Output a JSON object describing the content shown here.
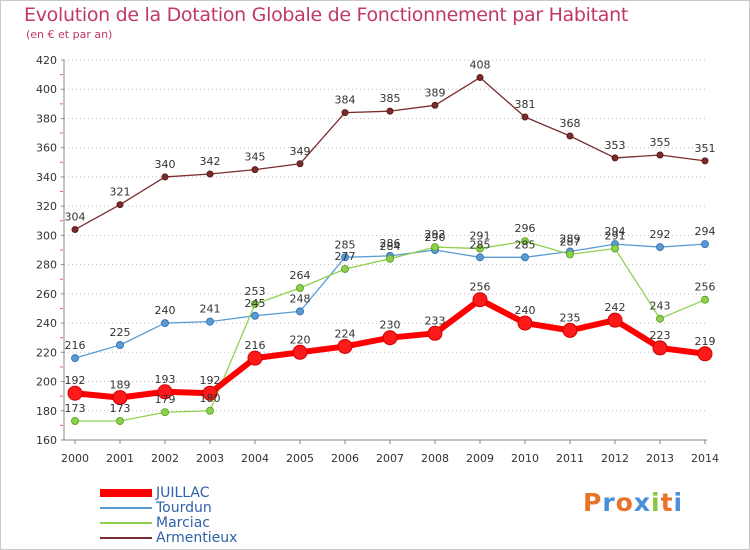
{
  "title": "Evolution de la Dotation Globale de Fonctionnement par Habitant",
  "subtitle": "(en € et par an)",
  "logo": {
    "text": "Proxiti",
    "colors": [
      "#e8732a",
      "#4a90d9",
      "#e8732a",
      "#4a90d9",
      "#8cc63f",
      "#e8732a",
      "#4a90d9"
    ]
  },
  "chart_data": {
    "type": "line",
    "title": "Evolution de la Dotation Globale de Fonctionnement par Habitant",
    "subtitle": "(en € et par an)",
    "xlabel": "",
    "ylabel": "",
    "x": [
      "2000",
      "2001",
      "2002",
      "2003",
      "2004",
      "2005",
      "2006",
      "2007",
      "2008",
      "2009",
      "2010",
      "2011",
      "2012",
      "2013",
      "2014"
    ],
    "ylim": [
      160,
      420
    ],
    "yticks": [
      160,
      180,
      200,
      220,
      240,
      260,
      280,
      300,
      320,
      340,
      360,
      380,
      400,
      420
    ],
    "grid": "horizontal dotted",
    "legend": "bottom-left",
    "series": [
      {
        "name": "JUILLAC",
        "color": "#ff0000",
        "values": [
          192,
          189,
          193,
          192,
          216,
          220,
          224,
          230,
          233,
          256,
          240,
          235,
          242,
          223,
          219
        ]
      },
      {
        "name": "Tourdun",
        "color": "#5b9bd5",
        "values": [
          216,
          225,
          240,
          241,
          245,
          248,
          285,
          286,
          290,
          285,
          285,
          289,
          294,
          292,
          294
        ]
      },
      {
        "name": "Marciac",
        "color": "#8fd14f",
        "values": [
          173,
          173,
          179,
          180,
          253,
          264,
          277,
          284,
          292,
          291,
          296,
          287,
          291,
          243,
          256
        ]
      },
      {
        "name": "Armentieux",
        "color": "#7b2c2c",
        "values": [
          304,
          321,
          340,
          342,
          345,
          349,
          384,
          385,
          389,
          408,
          381,
          368,
          353,
          355,
          351
        ]
      }
    ]
  }
}
